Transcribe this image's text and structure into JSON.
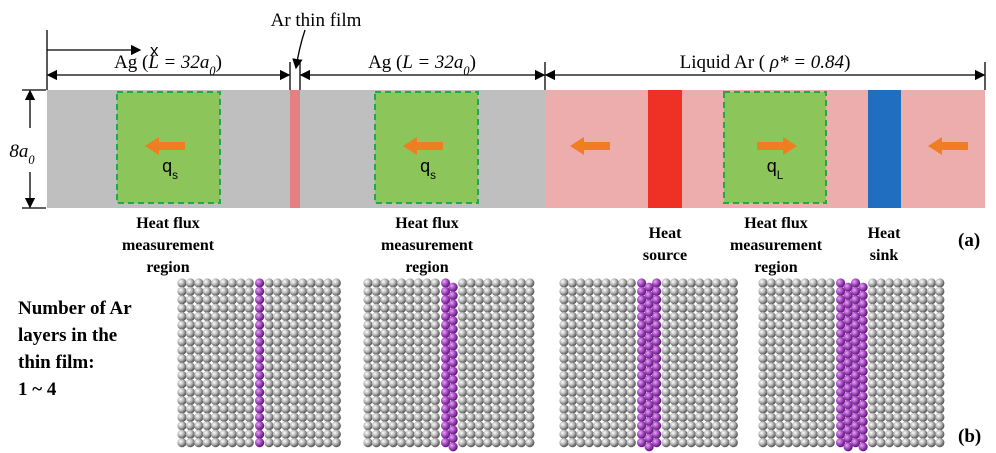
{
  "part_a": {
    "axis_label": "x",
    "thin_film_label": "Ar thin film",
    "ag_left": {
      "prefix": "Ag (",
      "var": "L = 32a",
      "sub": "0",
      "suffix": ")"
    },
    "ag_right": {
      "prefix": "Ag (",
      "var": "L = 32a",
      "sub": "0",
      "suffix": ")"
    },
    "liquid": {
      "prefix": "Liquid Ar ( ",
      "var": "ρ* = 0.84",
      "suffix": ")"
    },
    "height": {
      "var": "8a",
      "sub": "0"
    },
    "flux_left": {
      "main": "q",
      "sub": "s"
    },
    "flux_mid": {
      "main": "q",
      "sub": "s"
    },
    "flux_right": {
      "main": "q",
      "sub": "L"
    },
    "region_left": [
      "Heat flux",
      "measurement",
      "region"
    ],
    "region_mid": [
      "Heat flux",
      "measurement",
      "region"
    ],
    "heat_source": [
      "Heat",
      "source"
    ],
    "region_right": [
      "Heat flux",
      "measurement",
      "region"
    ],
    "heat_sink": [
      "Heat",
      "sink"
    ],
    "panel_label": "(a)"
  },
  "part_b": {
    "caption": [
      "Number of Ar",
      "layers in the",
      "thin film:",
      "1 ~ 4"
    ],
    "panel_label": "(b)"
  }
}
